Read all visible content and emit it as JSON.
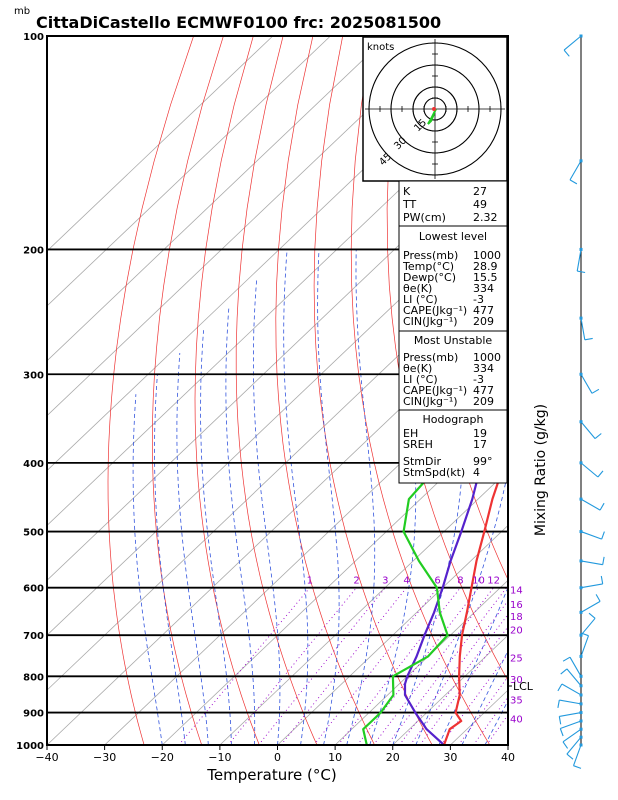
{
  "title": "CittaDiCastello  ECMWF0100  frc: 2025081500",
  "pressure_unit": "mb",
  "xlabel": "Temperature (°C)",
  "right_label": "Mixing Ratio (g/kg)",
  "hodograph": {
    "unit_label": "knots",
    "ring_labels": [
      "15",
      "30",
      "45"
    ]
  },
  "lcl_label": "LCL",
  "indices": {
    "top": [
      {
        "label": "K",
        "value": "27"
      },
      {
        "label": "TT",
        "value": "49"
      },
      {
        "label": "PW(cm)",
        "value": "2.32"
      }
    ],
    "lowest_level": {
      "header": "Lowest level",
      "rows": [
        {
          "label": "Press(mb)",
          "value": "1000"
        },
        {
          "label": "Temp(°C)",
          "value": "28.9"
        },
        {
          "label": "Dewp(°C)",
          "value": "15.5"
        },
        {
          "label": "θe(K)",
          "value": "334"
        },
        {
          "label": "LI (°C)",
          "value": "-3"
        },
        {
          "label": "CAPE(Jkg⁻¹)",
          "value": "477"
        },
        {
          "label": "CIN(Jkg⁻¹)",
          "value": "209"
        }
      ]
    },
    "most_unstable": {
      "header": "Most Unstable",
      "rows": [
        {
          "label": "Press(mb)",
          "value": "1000"
        },
        {
          "label": "θe(K)",
          "value": "334"
        },
        {
          "label": "LI (°C)",
          "value": "-3"
        },
        {
          "label": "CAPE(Jkg⁻¹)",
          "value": "477"
        },
        {
          "label": "CIN(Jkg⁻¹)",
          "value": "209"
        }
      ]
    },
    "hodograph_box": {
      "header": "Hodograph",
      "rows": [
        {
          "label": "EH",
          "value": "19"
        },
        {
          "label": "SREH",
          "value": "17"
        },
        {
          "label": "StmDir",
          "value": "99°"
        },
        {
          "label": "StmSpd(kt)",
          "value": "4"
        }
      ]
    }
  },
  "colors": {
    "temperature": "#ee3333",
    "dewpoint": "#22cc22",
    "parcel": "#5522cc",
    "isotherm": "#aaaaaa",
    "dry_adiabat": "#ee3333",
    "moist_adiabat": "#3355dd",
    "mixing_ratio": "#9900cc",
    "wind_barb": "#2299dd"
  },
  "chart_data": {
    "type": "line",
    "xlim": [
      -40,
      40
    ],
    "pressure_range": [
      1000,
      100
    ],
    "x_ticks": [
      -40,
      -30,
      -20,
      -10,
      0,
      10,
      20,
      30,
      40
    ],
    "pressure_ticks": [
      1000,
      900,
      800,
      700,
      600,
      500,
      400,
      300,
      200,
      100
    ],
    "mixing_ratio_labels": [
      "1",
      "2",
      "3",
      "4",
      "6",
      "8",
      "10",
      "12",
      "14",
      "16",
      "18",
      "20",
      "25",
      "30",
      "35",
      "40"
    ],
    "series": [
      {
        "key": "temperature",
        "points": [
          [
            1000,
            28.9
          ],
          [
            950,
            27
          ],
          [
            925,
            27.5
          ],
          [
            900,
            25
          ],
          [
            850,
            22.5
          ],
          [
            800,
            19
          ],
          [
            750,
            15.5
          ],
          [
            700,
            12
          ],
          [
            650,
            8.7
          ],
          [
            600,
            5
          ],
          [
            550,
            1
          ],
          [
            500,
            -3
          ],
          [
            450,
            -7.5
          ],
          [
            400,
            -12
          ],
          [
            350,
            -17
          ],
          [
            300,
            -23
          ],
          [
            250,
            -30
          ],
          [
            200,
            -35
          ],
          [
            150,
            -44
          ],
          [
            100,
            -55
          ]
        ]
      },
      {
        "key": "dewpoint",
        "points": [
          [
            1000,
            15.5
          ],
          [
            950,
            12
          ],
          [
            925,
            12
          ],
          [
            900,
            12
          ],
          [
            850,
            11
          ],
          [
            800,
            7.5
          ],
          [
            750,
            10
          ],
          [
            700,
            9.5
          ],
          [
            650,
            4
          ],
          [
            600,
            -1
          ],
          [
            550,
            -9
          ],
          [
            500,
            -17
          ],
          [
            450,
            -22
          ],
          [
            400,
            -23
          ],
          [
            350,
            -31
          ],
          [
            300,
            -40
          ],
          [
            250,
            -53
          ],
          [
            200,
            -55
          ],
          [
            150,
            -62
          ],
          [
            100,
            -70
          ]
        ]
      },
      {
        "key": "parcel",
        "points": [
          [
            1000,
            28.9
          ],
          [
            950,
            23
          ],
          [
            900,
            18
          ],
          [
            850,
            13
          ],
          [
            820,
            11
          ],
          [
            800,
            10
          ],
          [
            750,
            8
          ],
          [
            700,
            5.5
          ],
          [
            650,
            3
          ],
          [
            600,
            0
          ],
          [
            550,
            -3.5
          ],
          [
            500,
            -7
          ],
          [
            450,
            -11
          ],
          [
            400,
            -16
          ],
          [
            350,
            -21.5
          ],
          [
            300,
            -28
          ],
          [
            250,
            -36
          ],
          [
            200,
            -45
          ],
          [
            150,
            -58
          ],
          [
            100,
            -78
          ]
        ]
      }
    ],
    "lcl_pressure": 822,
    "wind_barb_pressures": [
      1000,
      975,
      950,
      925,
      900,
      875,
      850,
      825,
      800,
      750,
      700,
      650,
      600,
      550,
      500,
      450,
      400,
      350,
      300,
      250,
      200,
      150,
      100
    ]
  }
}
